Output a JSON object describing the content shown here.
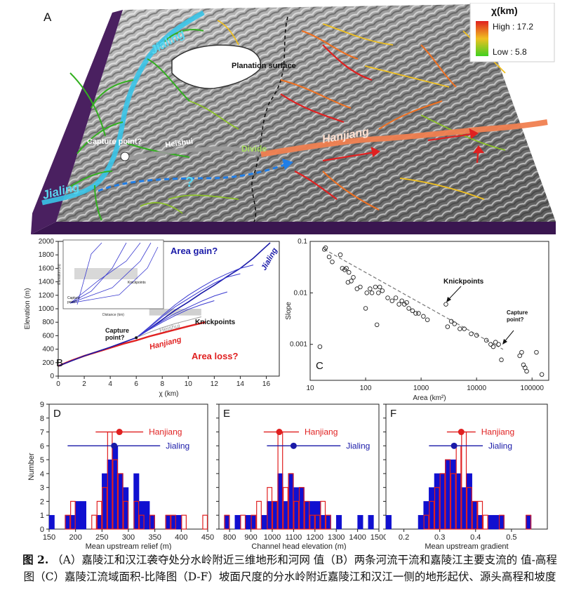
{
  "panelA": {
    "letter": "A",
    "legend_title": "χ(km)",
    "legend_high": "High : 17.2",
    "legend_low": "Low : 5.8",
    "lbl_jialing_top": "Jialing",
    "lbl_jialing_bottom": "Jialing",
    "lbl_hanjiang": "Hanjiang",
    "lbl_planation": "Planation\nsurface",
    "lbl_capture": "Capture\npoint?",
    "lbl_heishui": "Heishui",
    "lbl_divide": "Divide",
    "lbl_question": "?"
  },
  "panelB": {
    "letter": "B",
    "area_gain": "Area gain?",
    "area_loss": "Area loss?",
    "knickpoints": "Knickpoints",
    "capture": "Capture\npoint?",
    "jialing": "Jialing",
    "heishui": "Heishui",
    "hanjiang": "Hanjiang",
    "inset_knick": "Knickpoints",
    "inset_capture": "Capture\npoint?",
    "inset_xlabel": "Distance (km)",
    "inset_ylabel": "Elevation (m)"
  },
  "panelC": {
    "letter": "C",
    "knickpoints": "Knickpoints",
    "capture": "Capture\npoint?"
  },
  "hist": {
    "legend_hanjiang": "Hanjiang",
    "legend_jialing": "Jialing"
  },
  "chart_data": [
    {
      "type": "line",
      "id": "B",
      "xlabel": "χ (km)",
      "ylabel": "Elevation (m)",
      "xlim": [
        0,
        17
      ],
      "ylim": [
        0,
        2000
      ],
      "xticks": [
        0,
        2,
        4,
        6,
        8,
        10,
        12,
        14,
        16
      ],
      "yticks": [
        0,
        200,
        400,
        600,
        800,
        1000,
        1200,
        1400,
        1600,
        1800,
        2000
      ],
      "series": [
        {
          "name": "Hanjiang",
          "color": "#e02020",
          "x": [
            0,
            1,
            2,
            3,
            4,
            5,
            6,
            7,
            8,
            9,
            10,
            11.3
          ],
          "y": [
            150,
            230,
            300,
            360,
            420,
            480,
            530,
            590,
            640,
            690,
            740,
            800
          ]
        },
        {
          "name": "Jialing",
          "color": "#1a1aa8",
          "x": [
            0,
            2,
            4,
            6,
            7,
            8,
            9,
            10,
            11,
            12,
            13,
            14,
            15,
            16.3
          ],
          "y": [
            150,
            300,
            430,
            570,
            700,
            840,
            980,
            1100,
            1230,
            1350,
            1480,
            1600,
            1750,
            1980
          ]
        },
        {
          "name": "Jialing tributary 1",
          "color": "#3a3ad0",
          "x": [
            6,
            7,
            8,
            9,
            10,
            11,
            12,
            13,
            14
          ],
          "y": [
            570,
            720,
            880,
            1030,
            1150,
            1270,
            1380,
            1470,
            1520
          ]
        },
        {
          "name": "Jialing tributary 2",
          "color": "#3a3ad0",
          "x": [
            6,
            7,
            8,
            9,
            10,
            11,
            12,
            13
          ],
          "y": [
            570,
            700,
            820,
            930,
            1020,
            1110,
            1190,
            1250
          ]
        },
        {
          "name": "Jialing tributary 3",
          "color": "#3a3ad0",
          "x": [
            6,
            7,
            8,
            9,
            10,
            11,
            12,
            13,
            14,
            15
          ],
          "y": [
            570,
            730,
            900,
            1060,
            1200,
            1320,
            1430,
            1520,
            1600,
            1650
          ]
        },
        {
          "name": "Jialing tributary 4",
          "color": "#3a3ad0",
          "x": [
            6,
            7,
            8,
            9,
            10,
            11,
            12
          ],
          "y": [
            570,
            690,
            800,
            900,
            990,
            1060,
            1120
          ]
        },
        {
          "name": "Heishui",
          "color": "#999999",
          "x": [
            6,
            7,
            8,
            9,
            10,
            11
          ],
          "y": [
            570,
            650,
            720,
            780,
            830,
            880
          ]
        }
      ]
    },
    {
      "type": "scatter",
      "id": "C",
      "xlabel": "Area (km²)",
      "ylabel": "Slope",
      "xscale": "log",
      "yscale": "log",
      "xlim": [
        10,
        200000
      ],
      "ylim": [
        0.0002,
        0.1
      ],
      "xticks": [
        10,
        100,
        1000,
        10000,
        100000
      ],
      "xtick_labels": [
        "10",
        "100",
        "1000",
        "10000",
        "100000"
      ],
      "yticks": [
        0.001,
        0.01,
        0.1
      ],
      "ytick_labels": [
        "0.001",
        "0.01",
        "0.1"
      ],
      "trend": {
        "x": [
          18,
          30000
        ],
        "y": [
          0.07,
          0.0008
        ]
      },
      "points": [
        [
          15,
          0.0009
        ],
        [
          18,
          0.07
        ],
        [
          19,
          0.075
        ],
        [
          22,
          0.05
        ],
        [
          25,
          0.04
        ],
        [
          35,
          0.055
        ],
        [
          38,
          0.03
        ],
        [
          42,
          0.028
        ],
        [
          45,
          0.03
        ],
        [
          50,
          0.025
        ],
        [
          48,
          0.016
        ],
        [
          55,
          0.017
        ],
        [
          60,
          0.02
        ],
        [
          70,
          0.012
        ],
        [
          80,
          0.013
        ],
        [
          100,
          0.005
        ],
        [
          105,
          0.01
        ],
        [
          120,
          0.012
        ],
        [
          130,
          0.01
        ],
        [
          150,
          0.013
        ],
        [
          160,
          0.0024
        ],
        [
          170,
          0.01
        ],
        [
          180,
          0.013
        ],
        [
          200,
          0.011
        ],
        [
          250,
          0.008
        ],
        [
          300,
          0.007
        ],
        [
          350,
          0.008
        ],
        [
          400,
          0.006
        ],
        [
          450,
          0.007
        ],
        [
          500,
          0.006
        ],
        [
          550,
          0.0065
        ],
        [
          600,
          0.005
        ],
        [
          700,
          0.0045
        ],
        [
          800,
          0.004
        ],
        [
          900,
          0.004
        ],
        [
          1100,
          0.0035
        ],
        [
          1300,
          0.003
        ],
        [
          2800,
          0.006
        ],
        [
          3000,
          0.0022
        ],
        [
          3500,
          0.0028
        ],
        [
          4000,
          0.0025
        ],
        [
          5000,
          0.002
        ],
        [
          6000,
          0.002
        ],
        [
          8000,
          0.0016
        ],
        [
          10000,
          0.0015
        ],
        [
          15000,
          0.0012
        ],
        [
          18000,
          0.001
        ],
        [
          20000,
          0.0009
        ],
        [
          22000,
          0.0011
        ],
        [
          25000,
          0.001
        ],
        [
          28000,
          0.0005
        ],
        [
          60000,
          0.0006
        ],
        [
          65000,
          0.0007
        ],
        [
          70000,
          0.0004
        ],
        [
          75000,
          0.00035
        ],
        [
          80000,
          0.0003
        ],
        [
          120000,
          0.0007
        ],
        [
          150000,
          0.00026
        ]
      ]
    },
    {
      "type": "bar",
      "id": "D",
      "xlabel": "Mean upstream relief (m)",
      "ylabel": "Number",
      "xlim": [
        150,
        450
      ],
      "ylim": [
        0,
        9
      ],
      "xticks": [
        150,
        200,
        250,
        300,
        350,
        400,
        450
      ],
      "yticks": [
        0,
        1,
        2,
        3,
        4,
        5,
        6,
        7,
        8,
        9
      ],
      "bin_width": 10,
      "jialing": {
        "bins": [
          150,
          180,
          190,
          200,
          210,
          240,
          250,
          260,
          270,
          280,
          290,
          310,
          320,
          330,
          340,
          370,
          380,
          390
        ],
        "counts": [
          1,
          1,
          1,
          2,
          2,
          1,
          4,
          5,
          6,
          4,
          3,
          4,
          2,
          2,
          1,
          1,
          1,
          1
        ]
      },
      "hanjiang": {
        "bins": [
          180,
          190,
          230,
          240,
          250,
          260,
          270,
          280,
          290,
          310,
          320,
          340,
          370,
          380,
          400,
          440
        ],
        "counts": [
          1,
          2,
          1,
          2,
          3,
          7,
          5,
          4,
          2,
          2,
          1,
          1,
          1,
          1,
          1,
          1
        ]
      },
      "hanjiang_mean": 283,
      "hanjiang_range": [
        238,
        328
      ],
      "hanjiang_row": 7,
      "jialing_mean": 273,
      "jialing_range": [
        185,
        360
      ],
      "jialing_row": 6
    },
    {
      "type": "bar",
      "id": "E",
      "xlabel": "Channel head elevation (m)",
      "ylabel": "",
      "xlim": [
        750,
        1500
      ],
      "ylim": [
        0,
        9
      ],
      "xticks": [
        800,
        900,
        1000,
        1100,
        1200,
        1300,
        1400,
        1500
      ],
      "yticks": [
        0,
        1,
        2,
        3,
        4,
        5,
        6,
        7,
        8,
        9
      ],
      "bin_width": 25,
      "jialing": {
        "bins": [
          775,
          825,
          875,
          900,
          950,
          975,
          1000,
          1025,
          1050,
          1075,
          1100,
          1125,
          1150,
          1175,
          1200,
          1225,
          1250,
          1300,
          1400,
          1450
        ],
        "counts": [
          1,
          1,
          1,
          1,
          1,
          2,
          2,
          4,
          2,
          4,
          3,
          3,
          2,
          2,
          2,
          1,
          1,
          1,
          1,
          1
        ]
      },
      "hanjiang": {
        "bins": [
          775,
          850,
          900,
          925,
          975,
          1000,
          1025,
          1050,
          1075,
          1100,
          1125,
          1150,
          1175,
          1200,
          1225,
          1250
        ],
        "counts": [
          1,
          1,
          1,
          2,
          3,
          2,
          7,
          3,
          4,
          2,
          3,
          2,
          1,
          1,
          2,
          1
        ]
      },
      "hanjiang_mean": 1033,
      "hanjiang_range": [
        960,
        1125
      ],
      "hanjiang_row": 7,
      "jialing_mean": 1100,
      "jialing_range": [
        975,
        1320
      ],
      "jialing_row": 6
    },
    {
      "type": "bar",
      "id": "F",
      "xlabel": "Mean upstream gradient",
      "ylabel": "",
      "xlim": [
        0.15,
        0.6
      ],
      "ylim": [
        0,
        9
      ],
      "xticks": [
        0.2,
        0.3,
        0.4,
        0.5
      ],
      "xtick_labels": [
        "0.2",
        "0.3",
        "0.4",
        "0.5"
      ],
      "yticks": [
        0,
        1,
        2,
        3,
        4,
        5,
        6,
        7,
        8,
        9
      ],
      "bin_width": 0.015,
      "jialing": {
        "bins": [
          0.15,
          0.24,
          0.255,
          0.27,
          0.285,
          0.3,
          0.315,
          0.33,
          0.345,
          0.36,
          0.375,
          0.39,
          0.405,
          0.435,
          0.45,
          0.465,
          0.54
        ],
        "counts": [
          1,
          1,
          2,
          3,
          4,
          4,
          5,
          5,
          4,
          3,
          4,
          2,
          1,
          1,
          1,
          1,
          1
        ]
      },
      "hanjiang": {
        "bins": [
          0.255,
          0.27,
          0.285,
          0.3,
          0.315,
          0.33,
          0.345,
          0.36,
          0.375,
          0.39,
          0.405,
          0.42,
          0.465,
          0.54
        ],
        "counts": [
          1,
          2,
          3,
          4,
          5,
          4,
          6,
          7,
          3,
          2,
          2,
          1,
          1,
          1
        ]
      },
      "hanjiang_mean": 0.36,
      "hanjiang_range": [
        0.32,
        0.4
      ],
      "hanjiang_row": 7,
      "jialing_mean": 0.34,
      "jialing_range": [
        0.27,
        0.42
      ],
      "jialing_row": 6
    }
  ],
  "caption": {
    "figno": "图 2.",
    "text": "（A）嘉陵江和汉江袭夺处分水岭附近三维地形和河网 值（B）两条河流干流和嘉陵江主要支流的 值-高程图（C）嘉陵江流域面积-比降图（D-F）坡面尺度的分水岭附近嘉陵江和汉江一侧的地形起伏、源头高程和坡度"
  },
  "colors": {
    "red": "#e02020",
    "blue": "#1a1aa8",
    "grey": "#999999"
  }
}
